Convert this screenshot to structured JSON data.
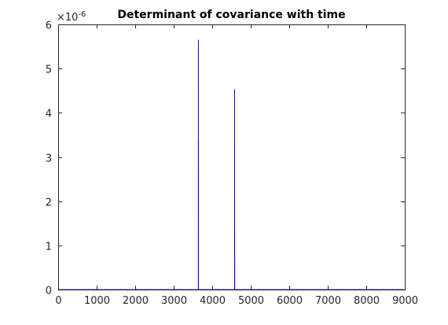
{
  "chart_data": {
    "type": "line",
    "title": "Determinant of covariance with time",
    "xlabel": "",
    "ylabel": "",
    "xlim": [
      0,
      9000
    ],
    "ylim": [
      0,
      6
    ],
    "y_exponent_label": "×10",
    "y_exponent_power": "-6",
    "x_ticks": [
      0,
      1000,
      2000,
      3000,
      4000,
      5000,
      6000,
      7000,
      8000,
      9000
    ],
    "x_tick_labels": [
      "0",
      "1000",
      "2000",
      "3000",
      "4000",
      "5000",
      "6000",
      "7000",
      "8000",
      "9000"
    ],
    "y_ticks": [
      0,
      1,
      2,
      3,
      4,
      5,
      6
    ],
    "y_tick_labels": [
      "0",
      "1",
      "2",
      "3",
      "4",
      "5",
      "6"
    ],
    "grid": false,
    "legend": "none",
    "series": [
      {
        "color": "#0000ff",
        "x": [
          0,
          3640,
          3641,
          3642,
          3643,
          3644,
          3645,
          4580,
          4581,
          4582,
          4583,
          4584,
          8980
        ],
        "y": [
          0,
          0,
          5.65,
          0,
          3.35,
          0,
          0,
          0,
          4.53,
          0,
          1.35,
          0,
          0
        ]
      }
    ]
  }
}
